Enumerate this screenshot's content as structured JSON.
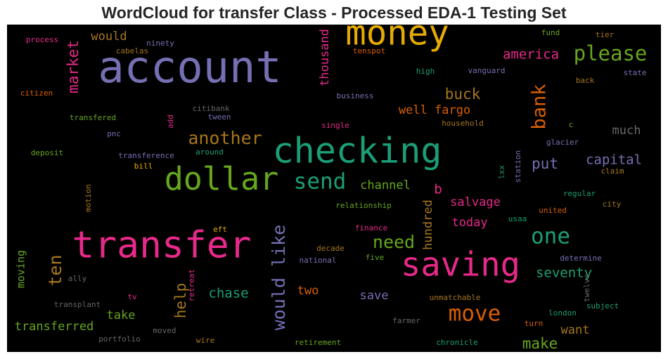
{
  "chart_data": {
    "type": "wordcloud",
    "title": "WordCloud for transfer Class - Processed EDA-1 Testing Set",
    "background": "#000000",
    "words": [
      {
        "text": "account",
        "color": "#7570b3"
      },
      {
        "text": "money",
        "color": "#e6ab02"
      },
      {
        "text": "checking",
        "color": "#1b9e77"
      },
      {
        "text": "transfer",
        "color": "#e7298a"
      },
      {
        "text": "dollar",
        "color": "#66a61e"
      },
      {
        "text": "saving",
        "color": "#e7298a"
      },
      {
        "text": "please",
        "color": "#66a61e"
      },
      {
        "text": "send",
        "color": "#1b9e77"
      },
      {
        "text": "another",
        "color": "#a6761d"
      },
      {
        "text": "america",
        "color": "#e7298a"
      },
      {
        "text": "market",
        "color": "#e7298a"
      },
      {
        "text": "thousand",
        "color": "#e7298a"
      },
      {
        "text": "would",
        "color": "#a6761d"
      },
      {
        "text": "bank",
        "color": "#d95f02"
      },
      {
        "text": "buck",
        "color": "#a6761d"
      },
      {
        "text": "well fargo",
        "color": "#d95f02"
      },
      {
        "text": "one",
        "color": "#1b9e77"
      },
      {
        "text": "need",
        "color": "#66a61e"
      },
      {
        "text": "move",
        "color": "#d95f02"
      },
      {
        "text": "would like",
        "color": "#7570b3"
      },
      {
        "text": "ten",
        "color": "#a6761d"
      },
      {
        "text": "help",
        "color": "#a6761d"
      },
      {
        "text": "chase",
        "color": "#1b9e77"
      },
      {
        "text": "seventy",
        "color": "#1b9e77"
      },
      {
        "text": "put",
        "color": "#7570b3"
      },
      {
        "text": "capital",
        "color": "#7570b3"
      },
      {
        "text": "much",
        "color": "#666666"
      },
      {
        "text": "channel",
        "color": "#66a61e"
      },
      {
        "text": "b",
        "color": "#e7298a"
      },
      {
        "text": "salvage",
        "color": "#e7298a"
      },
      {
        "text": "hundred",
        "color": "#a6761d"
      },
      {
        "text": "today",
        "color": "#e7298a"
      },
      {
        "text": "two",
        "color": "#d95f02"
      },
      {
        "text": "save",
        "color": "#7570b3"
      },
      {
        "text": "take",
        "color": "#66a61e"
      },
      {
        "text": "want",
        "color": "#a6761d"
      },
      {
        "text": "make",
        "color": "#66a61e"
      },
      {
        "text": "transferred",
        "color": "#66a61e"
      },
      {
        "text": "moving",
        "color": "#66a61e"
      },
      {
        "text": "process",
        "color": "#e7298a"
      },
      {
        "text": "ninety",
        "color": "#7570b3"
      },
      {
        "text": "cabelas",
        "color": "#a6761d"
      },
      {
        "text": "tenspot",
        "color": "#d95f02"
      },
      {
        "text": "fund",
        "color": "#66a61e"
      },
      {
        "text": "tier",
        "color": "#a6761d"
      },
      {
        "text": "high",
        "color": "#1b9e77"
      },
      {
        "text": "vanguard",
        "color": "#7570b3"
      },
      {
        "text": "state",
        "color": "#7570b3"
      },
      {
        "text": "back",
        "color": "#a6761d"
      },
      {
        "text": "citizen",
        "color": "#d95f02"
      },
      {
        "text": "business",
        "color": "#7570b3"
      },
      {
        "text": "citibank",
        "color": "#666666"
      },
      {
        "text": "tween",
        "color": "#7570b3"
      },
      {
        "text": "transfered",
        "color": "#66a61e"
      },
      {
        "text": "add",
        "color": "#e7298a"
      },
      {
        "text": "single",
        "color": "#e7298a"
      },
      {
        "text": "household",
        "color": "#a6761d"
      },
      {
        "text": "c",
        "color": "#66a61e"
      },
      {
        "text": "pnc",
        "color": "#7570b3"
      },
      {
        "text": "glacier",
        "color": "#7570b3"
      },
      {
        "text": "deposit",
        "color": "#66a61e"
      },
      {
        "text": "transference",
        "color": "#7570b3"
      },
      {
        "text": "around",
        "color": "#1b9e77"
      },
      {
        "text": "bill",
        "color": "#e6ab02"
      },
      {
        "text": "lxx",
        "color": "#1b9e77"
      },
      {
        "text": "station",
        "color": "#7570b3"
      },
      {
        "text": "claim",
        "color": "#a6761d"
      },
      {
        "text": "motion",
        "color": "#a6761d"
      },
      {
        "text": "regular",
        "color": "#1b9e77"
      },
      {
        "text": "relationship",
        "color": "#66a61e"
      },
      {
        "text": "city",
        "color": "#a6761d"
      },
      {
        "text": "united",
        "color": "#d95f02"
      },
      {
        "text": "eft",
        "color": "#e6ab02"
      },
      {
        "text": "finance",
        "color": "#e7298a"
      },
      {
        "text": "usaa",
        "color": "#1b9e77"
      },
      {
        "text": "decade",
        "color": "#a6761d"
      },
      {
        "text": "five",
        "color": "#66a61e"
      },
      {
        "text": "national",
        "color": "#7570b3"
      },
      {
        "text": "determine",
        "color": "#7570b3"
      },
      {
        "text": "ally",
        "color": "#666666"
      },
      {
        "text": "retreat",
        "color": "#e7298a"
      },
      {
        "text": "tv",
        "color": "#e7298a"
      },
      {
        "text": "twelve",
        "color": "#666666"
      },
      {
        "text": "unmatchable",
        "color": "#a6761d"
      },
      {
        "text": "subject",
        "color": "#1b9e77"
      },
      {
        "text": "transplant",
        "color": "#666666"
      },
      {
        "text": "london",
        "color": "#1b9e77"
      },
      {
        "text": "farmer",
        "color": "#666666"
      },
      {
        "text": "turn",
        "color": "#d95f02"
      },
      {
        "text": "moved",
        "color": "#666666"
      },
      {
        "text": "portfolio",
        "color": "#666666"
      },
      {
        "text": "wire",
        "color": "#a6761d"
      },
      {
        "text": "retirement",
        "color": "#66a61e"
      },
      {
        "text": "chronicle",
        "color": "#1b9e77"
      }
    ]
  }
}
